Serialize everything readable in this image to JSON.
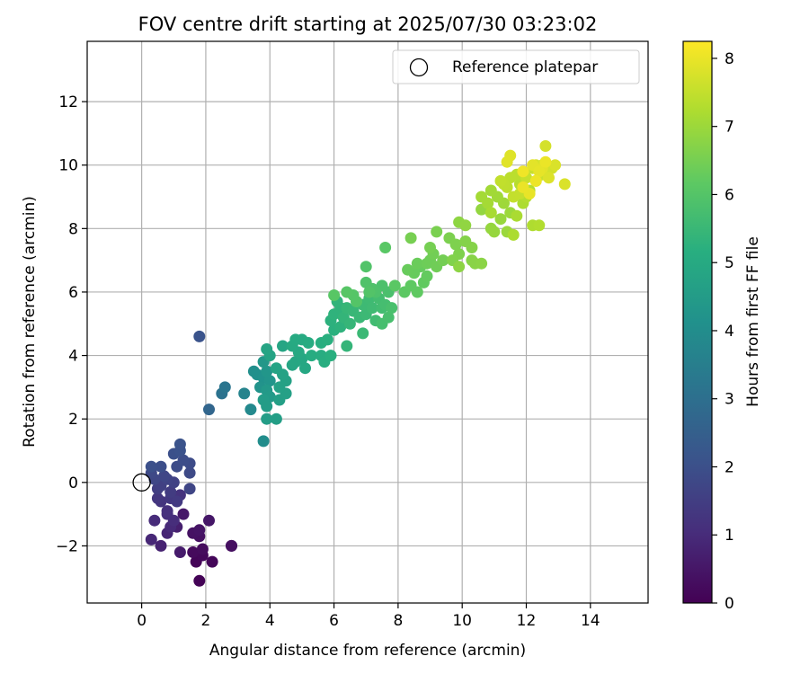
{
  "chart_data": {
    "type": "scatter",
    "title": "FOV centre drift starting at 2025/07/30 03:23:02",
    "xlabel": "Angular distance from reference (arcmin)",
    "ylabel": "Rotation from reference (arcmin)",
    "xlim": [
      -1.7,
      15.8
    ],
    "ylim": [
      -3.8,
      13.9
    ],
    "xticks": [
      0,
      2,
      4,
      6,
      8,
      10,
      12,
      14
    ],
    "yticks": [
      -2,
      0,
      2,
      4,
      6,
      8,
      10,
      12
    ],
    "xtick_labels": [
      "0",
      "2",
      "4",
      "6",
      "8",
      "10",
      "12",
      "14"
    ],
    "ytick_labels": [
      "−2",
      "0",
      "2",
      "4",
      "6",
      "8",
      "10",
      "12"
    ],
    "grid": true,
    "legend_position": "top-right",
    "legend": [
      {
        "label": "Reference platepar",
        "marker": "open-circle",
        "x": 0,
        "y": 0
      }
    ],
    "colorbar": {
      "label": "Hours from first FF file",
      "colormap": "viridis",
      "range": [
        0,
        8.25
      ],
      "ticks": [
        0,
        1,
        2,
        3,
        4,
        5,
        6,
        7,
        8
      ],
      "tick_labels": [
        "0",
        "1",
        "2",
        "3",
        "4",
        "5",
        "6",
        "7",
        "8"
      ]
    },
    "points_columns": [
      "x",
      "y",
      "hours"
    ],
    "points": [
      [
        1.8,
        -3.1,
        0.05
      ],
      [
        1.7,
        -2.5,
        0.1
      ],
      [
        2.2,
        -2.5,
        0.12
      ],
      [
        1.9,
        -2.3,
        0.15
      ],
      [
        1.6,
        -2.2,
        0.2
      ],
      [
        1.9,
        -2.1,
        0.25
      ],
      [
        2.8,
        -2.0,
        0.3
      ],
      [
        2.8,
        -2.0,
        0.32
      ],
      [
        1.8,
        -1.7,
        0.35
      ],
      [
        1.6,
        -1.6,
        0.4
      ],
      [
        1.8,
        -1.5,
        0.45
      ],
      [
        2.1,
        -1.2,
        0.5
      ],
      [
        1.3,
        -1.0,
        0.55
      ],
      [
        1.2,
        -2.2,
        0.62
      ],
      [
        1.1,
        -1.4,
        0.7
      ],
      [
        0.6,
        -2.0,
        0.78
      ],
      [
        0.8,
        -1.6,
        0.85
      ],
      [
        0.3,
        -1.8,
        0.9
      ],
      [
        0.9,
        -1.4,
        0.95
      ],
      [
        0.4,
        -1.2,
        1.0
      ],
      [
        1.0,
        -1.2,
        1.05
      ],
      [
        0.8,
        -1.0,
        1.1
      ],
      [
        0.8,
        -0.9,
        1.15
      ],
      [
        1.2,
        -0.4,
        1.2
      ],
      [
        0.6,
        -0.6,
        1.25
      ],
      [
        0.5,
        -0.5,
        1.3
      ],
      [
        0.9,
        -0.5,
        1.35
      ],
      [
        1.1,
        -0.6,
        1.4
      ],
      [
        0.9,
        -0.3,
        1.45
      ],
      [
        0.5,
        -0.2,
        1.5
      ],
      [
        0.6,
        -0.1,
        1.55
      ],
      [
        1.0,
        0.0,
        1.6
      ],
      [
        0.8,
        0.1,
        1.65
      ],
      [
        1.5,
        -0.2,
        1.7
      ],
      [
        0.7,
        0.2,
        1.72
      ],
      [
        0.4,
        0.1,
        1.75
      ],
      [
        0.3,
        0.3,
        1.8
      ],
      [
        1.5,
        0.3,
        1.83
      ],
      [
        1.5,
        0.6,
        1.86
      ],
      [
        1.1,
        0.5,
        1.9
      ],
      [
        1.3,
        0.7,
        1.93
      ],
      [
        0.6,
        0.5,
        1.96
      ],
      [
        0.3,
        0.5,
        2.0
      ],
      [
        1.0,
        0.9,
        2.02
      ],
      [
        1.2,
        1.0,
        2.05
      ],
      [
        1.2,
        1.2,
        2.08
      ],
      [
        1.8,
        4.6,
        2.1
      ],
      [
        2.1,
        2.3,
        2.7
      ],
      [
        2.5,
        2.8,
        3.1
      ],
      [
        2.6,
        3.0,
        3.2
      ],
      [
        3.2,
        2.8,
        3.7
      ],
      [
        3.4,
        2.3,
        3.85
      ],
      [
        3.8,
        1.3,
        4.0
      ],
      [
        3.5,
        3.5,
        4.05
      ],
      [
        3.6,
        3.4,
        4.1
      ],
      [
        3.8,
        3.3,
        4.15
      ],
      [
        3.7,
        3.0,
        4.2
      ],
      [
        4.0,
        3.2,
        4.25
      ],
      [
        3.9,
        3.5,
        4.3
      ],
      [
        3.8,
        3.8,
        4.35
      ],
      [
        3.9,
        2.9,
        4.4
      ],
      [
        4.0,
        2.7,
        4.45
      ],
      [
        3.8,
        2.6,
        4.5
      ],
      [
        3.9,
        2.4,
        4.52
      ],
      [
        3.9,
        2.0,
        4.55
      ],
      [
        4.2,
        2.0,
        4.6
      ],
      [
        4.3,
        2.6,
        4.62
      ],
      [
        4.5,
        2.8,
        4.65
      ],
      [
        4.3,
        3.0,
        4.68
      ],
      [
        4.5,
        3.2,
        4.7
      ],
      [
        4.4,
        3.4,
        4.72
      ],
      [
        4.2,
        3.6,
        4.75
      ],
      [
        4.0,
        4.0,
        4.78
      ],
      [
        3.9,
        4.2,
        4.8
      ],
      [
        4.4,
        4.3,
        4.82
      ],
      [
        4.7,
        3.7,
        4.85
      ],
      [
        4.8,
        3.8,
        4.88
      ],
      [
        5.0,
        3.9,
        4.9
      ],
      [
        5.1,
        3.6,
        4.92
      ],
      [
        4.9,
        4.1,
        4.95
      ],
      [
        4.7,
        4.3,
        4.98
      ],
      [
        4.8,
        4.5,
        5.0
      ],
      [
        5.0,
        4.5,
        5.02
      ],
      [
        5.2,
        4.4,
        5.05
      ],
      [
        5.3,
        4.0,
        5.08
      ],
      [
        5.6,
        4.0,
        5.1
      ],
      [
        5.7,
        3.8,
        5.12
      ],
      [
        5.6,
        4.4,
        5.15
      ],
      [
        5.9,
        4.0,
        5.18
      ],
      [
        5.8,
        4.5,
        5.2
      ],
      [
        6.0,
        4.8,
        5.22
      ],
      [
        5.9,
        5.1,
        5.25
      ],
      [
        6.2,
        4.9,
        5.28
      ],
      [
        6.0,
        5.3,
        5.3
      ],
      [
        6.2,
        5.5,
        5.32
      ],
      [
        6.1,
        5.7,
        5.35
      ],
      [
        6.3,
        5.2,
        5.38
      ],
      [
        6.4,
        4.3,
        5.4
      ],
      [
        6.5,
        5.0,
        5.42
      ],
      [
        6.4,
        5.5,
        5.45
      ],
      [
        6.6,
        5.4,
        5.48
      ],
      [
        6.8,
        5.2,
        5.5
      ],
      [
        6.9,
        4.7,
        5.52
      ],
      [
        7.0,
        5.3,
        5.55
      ],
      [
        6.9,
        5.6,
        5.58
      ],
      [
        7.1,
        5.8,
        5.6
      ],
      [
        7.2,
        5.5,
        5.62
      ],
      [
        7.3,
        5.1,
        5.65
      ],
      [
        7.5,
        5.5,
        5.68
      ],
      [
        7.4,
        5.8,
        5.7
      ],
      [
        7.6,
        5.6,
        5.72
      ],
      [
        7.5,
        5.0,
        5.75
      ],
      [
        7.7,
        5.2,
        5.78
      ],
      [
        7.8,
        5.5,
        5.8
      ],
      [
        7.7,
        6.0,
        5.82
      ],
      [
        7.5,
        6.2,
        5.85
      ],
      [
        7.3,
        6.0,
        5.88
      ],
      [
        7.2,
        6.1,
        5.9
      ],
      [
        7.0,
        6.3,
        5.92
      ],
      [
        7.0,
        6.8,
        5.95
      ],
      [
        7.1,
        6.0,
        5.97
      ],
      [
        6.7,
        5.7,
        6.0
      ],
      [
        6.6,
        5.9,
        6.02
      ],
      [
        6.4,
        6.0,
        6.05
      ],
      [
        6.0,
        5.9,
        6.08
      ],
      [
        7.6,
        7.4,
        6.1
      ],
      [
        7.9,
        6.2,
        6.12
      ],
      [
        8.2,
        6.0,
        6.15
      ],
      [
        8.4,
        6.2,
        6.18
      ],
      [
        8.6,
        6.0,
        6.2
      ],
      [
        8.8,
        6.3,
        6.22
      ],
      [
        8.9,
        6.5,
        6.25
      ],
      [
        8.7,
        6.8,
        6.28
      ],
      [
        8.5,
        6.6,
        6.3
      ],
      [
        8.3,
        6.7,
        6.32
      ],
      [
        8.6,
        6.9,
        6.35
      ],
      [
        8.9,
        6.9,
        6.38
      ],
      [
        9.0,
        7.0,
        6.4
      ],
      [
        9.2,
        6.8,
        6.42
      ],
      [
        9.1,
        7.2,
        6.45
      ],
      [
        9.4,
        7.0,
        6.48
      ],
      [
        9.0,
        7.4,
        6.5
      ],
      [
        8.4,
        7.7,
        6.52
      ],
      [
        9.2,
        7.9,
        6.55
      ],
      [
        9.6,
        7.7,
        6.58
      ],
      [
        9.8,
        7.5,
        6.6
      ],
      [
        9.9,
        7.2,
        6.62
      ],
      [
        9.7,
        7.0,
        6.65
      ],
      [
        10.1,
        7.6,
        6.68
      ],
      [
        10.3,
        7.4,
        6.7
      ],
      [
        10.3,
        7.0,
        6.72
      ],
      [
        10.4,
        6.9,
        6.75
      ],
      [
        10.6,
        6.9,
        6.77
      ],
      [
        9.9,
        6.8,
        6.8
      ],
      [
        9.9,
        8.2,
        6.82
      ],
      [
        10.1,
        8.1,
        6.85
      ],
      [
        10.6,
        8.6,
        6.88
      ],
      [
        10.9,
        8.0,
        6.9
      ],
      [
        11.0,
        7.9,
        6.92
      ],
      [
        11.2,
        8.3,
        6.95
      ],
      [
        11.4,
        7.9,
        6.98
      ],
      [
        11.5,
        8.5,
        7.0
      ],
      [
        11.3,
        8.8,
        7.02
      ],
      [
        11.1,
        9.0,
        7.05
      ],
      [
        10.9,
        9.2,
        7.08
      ],
      [
        10.6,
        9.0,
        7.1
      ],
      [
        10.8,
        8.8,
        7.12
      ],
      [
        10.9,
        8.5,
        7.15
      ],
      [
        11.7,
        8.4,
        7.18
      ],
      [
        11.6,
        7.8,
        7.2
      ],
      [
        11.9,
        8.8,
        7.22
      ],
      [
        12.2,
        8.1,
        7.25
      ],
      [
        12.4,
        8.1,
        7.28
      ],
      [
        12.0,
        9.0,
        7.3
      ],
      [
        12.1,
        9.2,
        7.32
      ],
      [
        11.8,
        9.4,
        7.35
      ],
      [
        11.7,
        9.7,
        7.38
      ],
      [
        11.5,
        9.6,
        7.4
      ],
      [
        11.4,
        9.3,
        7.42
      ],
      [
        11.3,
        9.4,
        7.45
      ],
      [
        11.2,
        9.5,
        7.48
      ],
      [
        11.6,
        9.0,
        7.5
      ],
      [
        11.8,
        9.1,
        7.52
      ],
      [
        12.0,
        9.6,
        7.55
      ],
      [
        12.2,
        9.9,
        7.58
      ],
      [
        12.3,
        9.5,
        7.6
      ],
      [
        12.5,
        9.7,
        7.62
      ],
      [
        12.5,
        10.0,
        7.65
      ],
      [
        12.6,
        9.8,
        7.68
      ],
      [
        12.8,
        9.9,
        7.7
      ],
      [
        12.6,
        10.6,
        7.72
      ],
      [
        12.3,
        10.0,
        7.75
      ],
      [
        12.9,
        10.0,
        7.78
      ],
      [
        13.2,
        9.4,
        7.8
      ],
      [
        12.7,
        9.6,
        7.82
      ],
      [
        11.5,
        10.3,
        7.85
      ],
      [
        11.4,
        10.1,
        7.88
      ],
      [
        12.5,
        9.9,
        7.9
      ],
      [
        12.2,
        10.0,
        7.92
      ],
      [
        12.4,
        9.8,
        7.95
      ],
      [
        12.1,
        9.1,
        7.98
      ],
      [
        11.9,
        9.3,
        8.0
      ],
      [
        12.6,
        10.1,
        8.02
      ],
      [
        12.3,
        9.5,
        8.05
      ],
      [
        11.9,
        9.8,
        8.08
      ]
    ]
  }
}
